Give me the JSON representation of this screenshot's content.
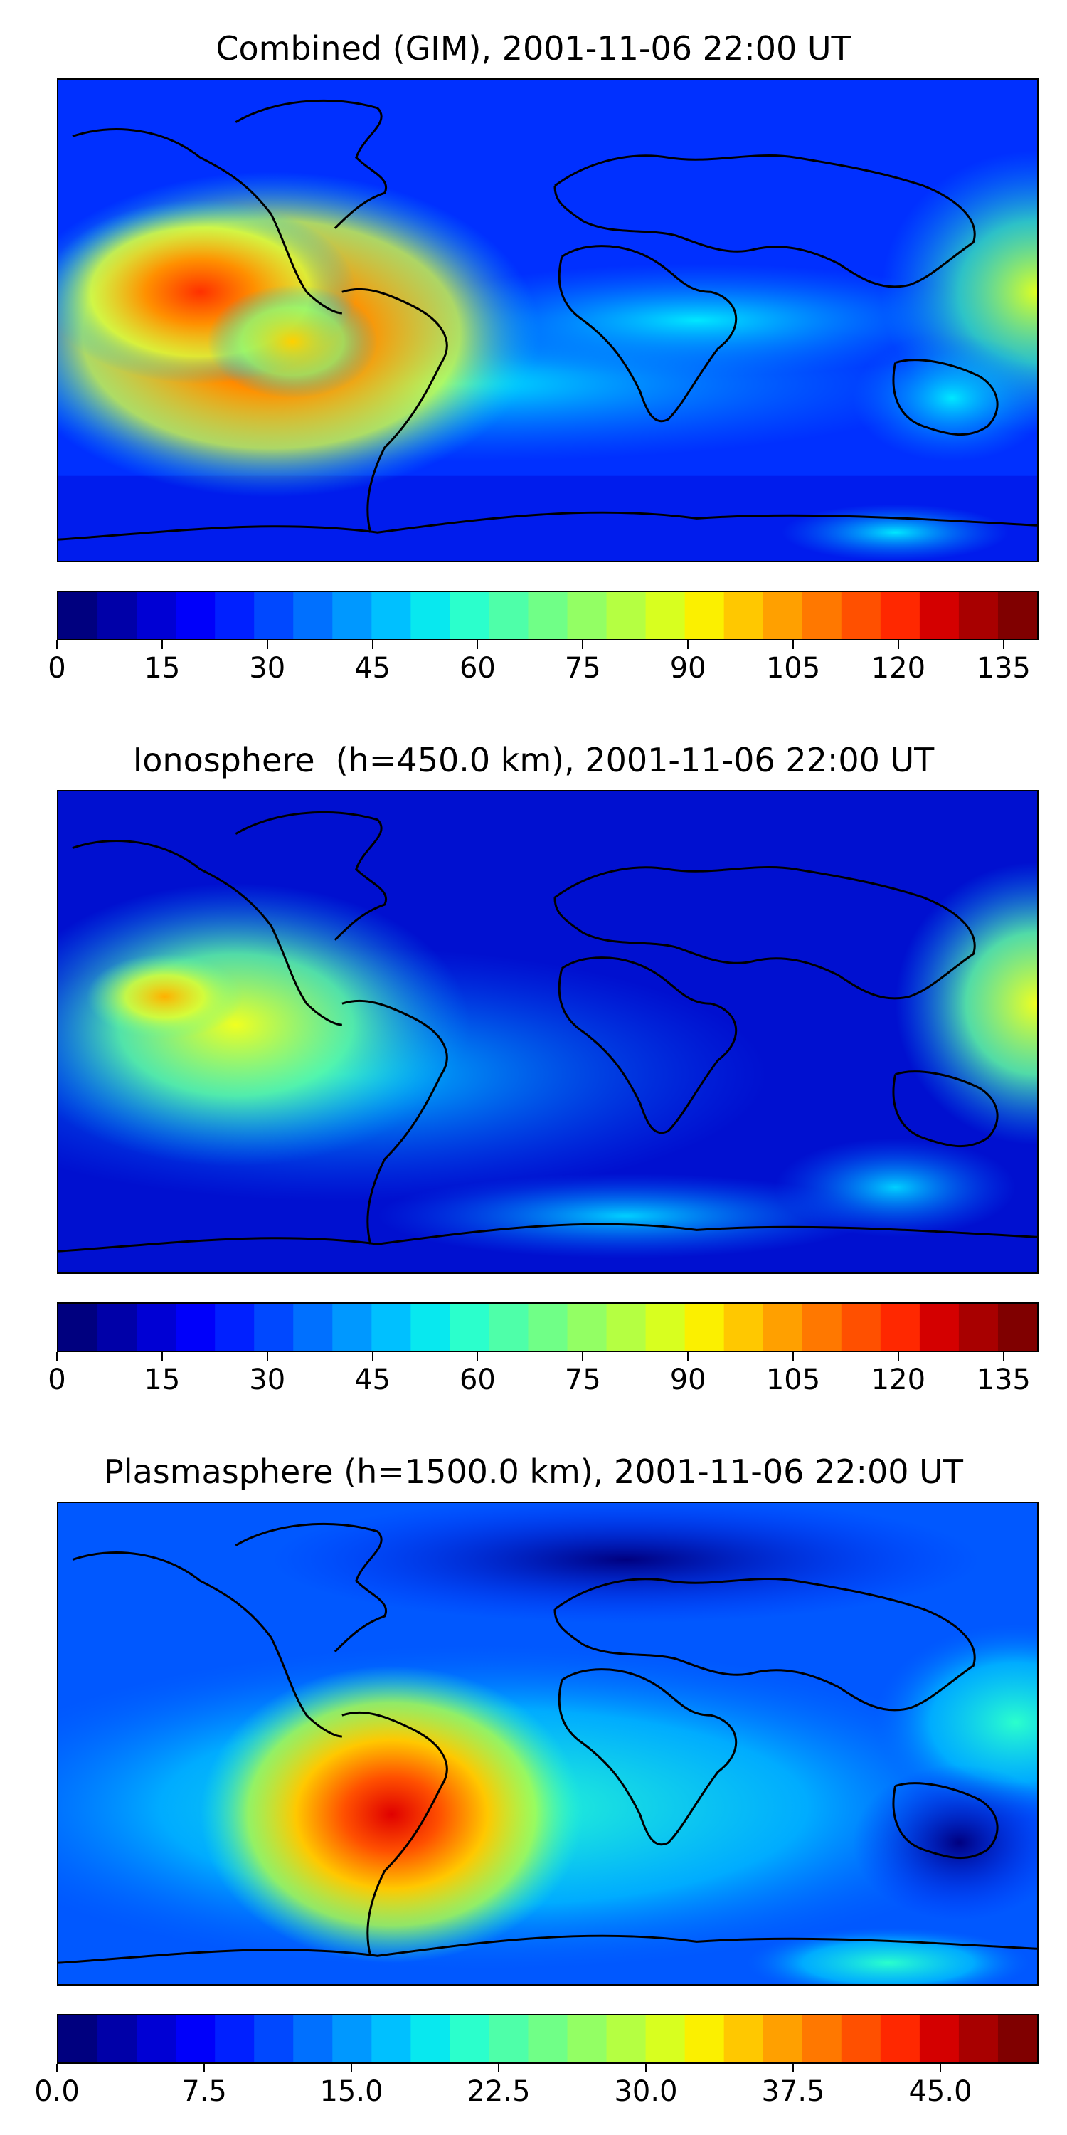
{
  "panels": [
    {
      "title": "Combined (GIM), 2001-11-06 22:00 UT",
      "colorbar": {
        "min": 0,
        "max": 140,
        "ticks": [
          "0",
          "15",
          "30",
          "45",
          "60",
          "75",
          "90",
          "105",
          "120",
          "135"
        ],
        "tick_values": [
          0,
          15,
          30,
          45,
          60,
          75,
          90,
          105,
          120,
          135
        ]
      }
    },
    {
      "title": "Ionosphere  (h=450.0 km), 2001-11-06 22:00 UT",
      "colorbar": {
        "min": 0,
        "max": 140,
        "ticks": [
          "0",
          "15",
          "30",
          "45",
          "60",
          "75",
          "90",
          "105",
          "120",
          "135"
        ],
        "tick_values": [
          0,
          15,
          30,
          45,
          60,
          75,
          90,
          105,
          120,
          135
        ]
      }
    },
    {
      "title": "Plasmasphere (h=1500.0 km), 2001-11-06 22:00 UT",
      "colorbar": {
        "min": 0,
        "max": 50,
        "ticks": [
          "0.0",
          "7.5",
          "15.0",
          "22.5",
          "30.0",
          "37.5",
          "45.0"
        ],
        "tick_values": [
          0,
          7.5,
          15,
          22.5,
          30,
          37.5,
          45
        ]
      }
    }
  ],
  "colormap": [
    "#00007f",
    "#0000a8",
    "#0000d4",
    "#0000fa",
    "#0020ff",
    "#0048ff",
    "#0070ff",
    "#0098ff",
    "#00c0ff",
    "#08e8ef",
    "#2bffcc",
    "#4effa9",
    "#70ff87",
    "#93ff64",
    "#b5ff42",
    "#d8ff1f",
    "#fbf000",
    "#ffc800",
    "#ffa000",
    "#ff7800",
    "#ff5000",
    "#ff2800",
    "#d40000",
    "#a80000",
    "#800000"
  ]
}
